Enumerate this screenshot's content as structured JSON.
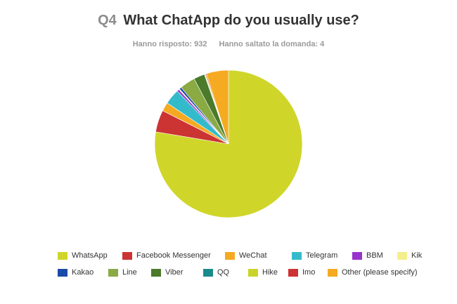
{
  "header": {
    "question_number": "Q4",
    "question_text": "What ChatApp do you usually use?",
    "answered": "Hanno risposto: 932",
    "skipped": "Hanno saltato la domanda: 4"
  },
  "chart_data": {
    "type": "pie",
    "title": "What ChatApp do you usually use?",
    "legend_position": "bottom",
    "slices": [
      {
        "label": "WhatsApp",
        "value": 80.5,
        "color": "#cfd629"
      },
      {
        "label": "Facebook Messenger",
        "value": 5.0,
        "color": "#cc3333"
      },
      {
        "label": "WeChat",
        "value": 2.0,
        "color": "#f5aa22"
      },
      {
        "label": "Telegram",
        "value": 3.5,
        "color": "#33bbcc"
      },
      {
        "label": "BBM",
        "value": 0.5,
        "color": "#9933cc"
      },
      {
        "label": "Kik",
        "value": 0.2,
        "color": "#f5ee8c"
      },
      {
        "label": "Kakao",
        "value": 0.5,
        "color": "#1a4aa6"
      },
      {
        "label": "Line",
        "value": 3.5,
        "color": "#8aaa44"
      },
      {
        "label": "Viber",
        "value": 2.5,
        "color": "#4a7a2a"
      },
      {
        "label": "QQ",
        "value": 0.1,
        "color": "#1a8a8a"
      },
      {
        "label": "Hike",
        "value": 0.2,
        "color": "#c8d42a"
      },
      {
        "label": "Imo",
        "value": 0.2,
        "color": "#cc3333"
      },
      {
        "label": "Other (please specify)",
        "value": 5.0,
        "color": "#f5aa22"
      }
    ]
  }
}
